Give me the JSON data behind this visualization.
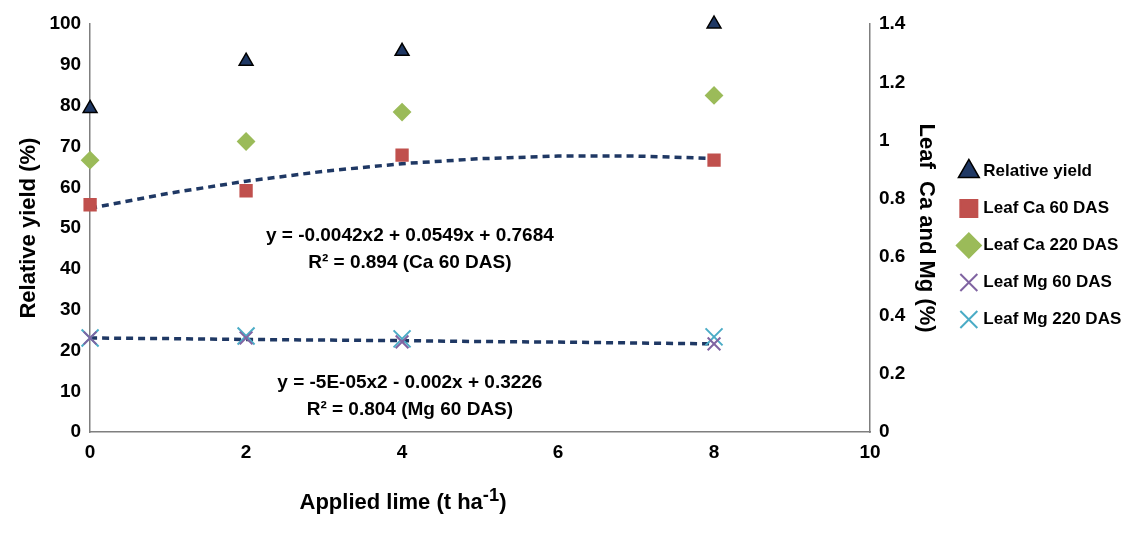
{
  "chart_data": {
    "type": "scatter",
    "xlabel": "Applied lime (t ha$^{-1}$)",
    "ylabel": "Relative yield (%)",
    "y2label": "Leaf  Ca and Mg (%)",
    "xlim": [
      0,
      10
    ],
    "xticks": [
      0,
      2,
      4,
      6,
      8,
      10
    ],
    "ylim": [
      0,
      100
    ],
    "yticks": [
      0,
      10,
      20,
      30,
      40,
      50,
      60,
      70,
      80,
      90,
      100
    ],
    "y2lim": [
      0,
      1.4
    ],
    "y2ticks": [
      0,
      0.2,
      0.4,
      0.6,
      0.8,
      1,
      1.2,
      1.4
    ],
    "grid": false,
    "legend": "right",
    "series": [
      {
        "name": "Relative yield",
        "color": "#1f3864",
        "marker": "triangle",
        "x": [
          0,
          2,
          4,
          8
        ],
        "values": [
          79.3,
          90.9,
          93.3,
          100
        ]
      },
      {
        "name": "Leaf Ca 60 DAS",
        "color": "#c0504d",
        "marker": "square",
        "axis": "y2",
        "x": [
          0,
          2,
          4,
          8
        ],
        "values": [
          0.78,
          0.828,
          0.95,
          0.933
        ]
      },
      {
        "name": "Leaf Ca 220 DAS",
        "color": "#9bbb59",
        "marker": "diamond",
        "axis": "y2",
        "x": [
          0,
          2,
          4,
          8
        ],
        "values": [
          0.933,
          0.997,
          1.098,
          1.155
        ]
      },
      {
        "name": "Leaf Mg 60 DAS",
        "color": "#8064a2",
        "marker": "cross",
        "axis": "y2",
        "x": [
          0,
          2,
          4,
          8
        ],
        "values": [
          0.323,
          0.323,
          0.31,
          0.303
        ]
      },
      {
        "name": "Leaf Mg 220 DAS",
        "color": "#4bacc6",
        "marker": "cross",
        "axis": "y2",
        "x": [
          0,
          2,
          4,
          8
        ],
        "values": [
          0.323,
          0.33,
          0.32,
          0.327
        ]
      },
      {
        "type": "line",
        "color": "#1f3864",
        "line_style": "dashed",
        "axis": "y2",
        "x": [
          0,
          1,
          2,
          3,
          4,
          5,
          6,
          7,
          8
        ],
        "values": [
          0.768,
          0.819,
          0.861,
          0.895,
          0.921,
          0.938,
          0.947,
          0.947,
          0.939
        ]
      },
      {
        "type": "line",
        "color": "#1f3864",
        "line_style": "dashed",
        "axis": "y2",
        "x": [
          0,
          1,
          2,
          3,
          4,
          5,
          6,
          7,
          8
        ],
        "values": [
          0.323,
          0.321,
          0.318,
          0.316,
          0.314,
          0.311,
          0.309,
          0.306,
          0.303
        ]
      }
    ],
    "annotations": [
      "y = -0.0042x2 + 0.0549x + 0.7684",
      "R² = 0.894 (Ca 60 DAS)",
      "y = -5E-05x2 - 0.002x + 0.3226",
      "R² = 0.804 (Mg 60 DAS)"
    ]
  }
}
